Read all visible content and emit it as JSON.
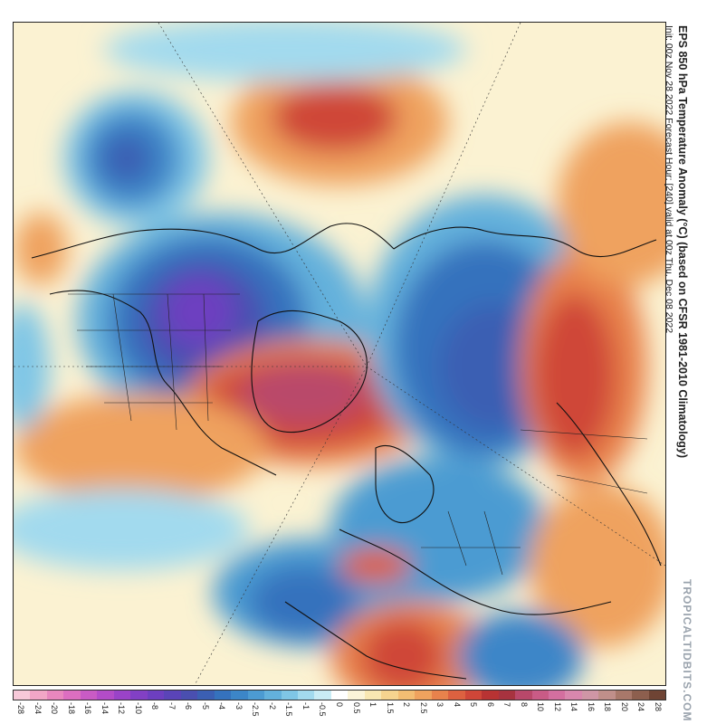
{
  "title": "EPS 850 hPa Temperature Anomaly (°C) (based on CFSR 1981-2010 Climatology)",
  "subtitle": "Init: 00z Nov 28 2022   Forecast Hour: [240]   valid at 00z Thu, Dec 08 2022",
  "brand": "TROPICALTIDBITS.COM",
  "colorbar": {
    "labels": [
      "-28",
      "-24",
      "-20",
      "-18",
      "-16",
      "-14",
      "-12",
      "-10",
      "-8",
      "-7",
      "-6",
      "-5",
      "-4",
      "-3",
      "-2.5",
      "-2",
      "-1.5",
      "-1",
      "-0.5",
      "0",
      "0.5",
      "1",
      "1.5",
      "2",
      "2.5",
      "3",
      "4",
      "5",
      "6",
      "7",
      "8",
      "10",
      "12",
      "14",
      "16",
      "18",
      "20",
      "24",
      "28"
    ],
    "colors": [
      "#f7c9d9",
      "#f2a6c6",
      "#e887be",
      "#dc6ec0",
      "#c95bc4",
      "#b34cc8",
      "#9a43c8",
      "#8240c4",
      "#6d3fc0",
      "#5a44b8",
      "#4a4fb0",
      "#3b5fb3",
      "#3572bd",
      "#3c86c8",
      "#4c9bd2",
      "#63b1dc",
      "#7fc6e6",
      "#a2daee",
      "#c9ecf5",
      "#ffffff",
      "#fbf4d8",
      "#f8e7b2",
      "#f6d48f",
      "#f3bd73",
      "#efa25e",
      "#e8824c",
      "#dd6140",
      "#cf4638",
      "#b83333",
      "#a7333f",
      "#b9486a",
      "#c95b86",
      "#d36f9f",
      "#d887ad",
      "#cf96a6",
      "#c08f8a",
      "#a8786a",
      "#8d5f4e",
      "#6f4434"
    ]
  }
}
